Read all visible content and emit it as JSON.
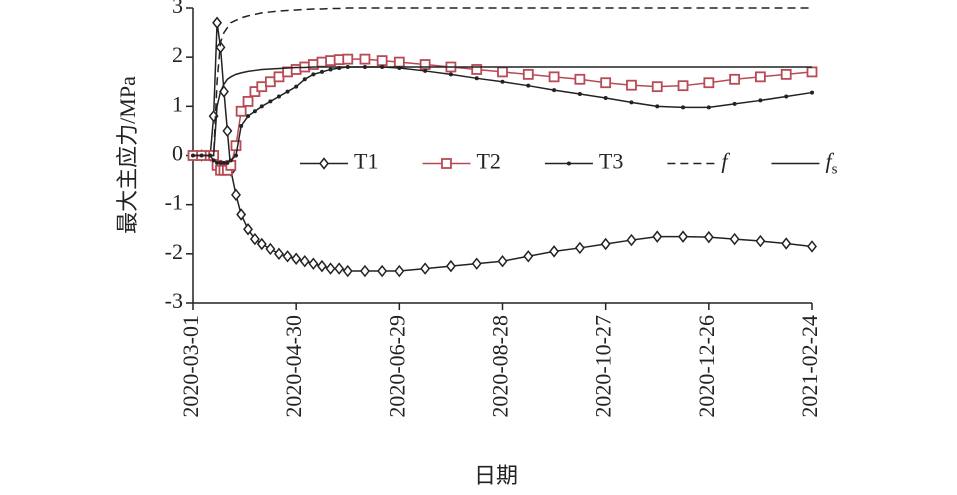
{
  "chart_data": {
    "type": "line",
    "x_label": "日期",
    "y_label": "最大主应力/MPa",
    "x": [
      "2020-03-01",
      "2020-03-06",
      "2020-03-11",
      "2020-03-13",
      "2020-03-15",
      "2020-03-17",
      "2020-03-19",
      "2020-03-21",
      "2020-03-23",
      "2020-03-26",
      "2020-03-29",
      "2020-04-02",
      "2020-04-06",
      "2020-04-10",
      "2020-04-15",
      "2020-04-20",
      "2020-04-25",
      "2020-04-30",
      "2020-05-05",
      "2020-05-10",
      "2020-05-15",
      "2020-05-20",
      "2020-05-25",
      "2020-05-30",
      "2020-06-09",
      "2020-06-19",
      "2020-06-29",
      "2020-07-14",
      "2020-07-29",
      "2020-08-13",
      "2020-08-28",
      "2020-09-12",
      "2020-09-27",
      "2020-10-12",
      "2020-10-27",
      "2020-11-11",
      "2020-11-26",
      "2020-12-11",
      "2020-12-26",
      "2021-01-10",
      "2021-01-25",
      "2021-02-09",
      "2021-02-24"
    ],
    "xlim": [
      "2020-03-01",
      "2021-02-24"
    ],
    "xticks": [
      "2020-03-01",
      "2020-04-30",
      "2020-06-29",
      "2020-08-28",
      "2020-10-27",
      "2020-12-26",
      "2021-02-24"
    ],
    "ylim": [
      -3,
      3
    ],
    "yticks": [
      3,
      2,
      1,
      0,
      -1,
      -2,
      -3
    ],
    "legend": "center",
    "series": [
      {
        "name": "T1",
        "color": "#222222",
        "marker": "diamond",
        "dash": false,
        "italic": false,
        "values": [
          0,
          0,
          0,
          0.8,
          2.7,
          2.2,
          1.3,
          0.5,
          -0.3,
          -0.8,
          -1.2,
          -1.5,
          -1.7,
          -1.8,
          -1.9,
          -2.0,
          -2.05,
          -2.1,
          -2.15,
          -2.2,
          -2.25,
          -2.3,
          -2.3,
          -2.35,
          -2.35,
          -2.35,
          -2.35,
          -2.3,
          -2.25,
          -2.2,
          -2.15,
          -2.05,
          -1.95,
          -1.88,
          -1.8,
          -1.72,
          -1.65,
          -1.65,
          -1.66,
          -1.7,
          -1.74,
          -1.79,
          -1.85
        ]
      },
      {
        "name": "T2",
        "color": "#b84a55",
        "marker": "square",
        "dash": false,
        "italic": false,
        "values": [
          0,
          0,
          0,
          0,
          -0.2,
          -0.3,
          -0.3,
          -0.3,
          -0.2,
          0.2,
          0.9,
          1.1,
          1.3,
          1.4,
          1.5,
          1.6,
          1.7,
          1.75,
          1.8,
          1.85,
          1.9,
          1.93,
          1.95,
          1.96,
          1.96,
          1.93,
          1.9,
          1.85,
          1.8,
          1.75,
          1.7,
          1.65,
          1.6,
          1.55,
          1.48,
          1.43,
          1.4,
          1.42,
          1.48,
          1.55,
          1.6,
          1.65,
          1.7
        ]
      },
      {
        "name": "T3",
        "color": "#222222",
        "marker": "dot",
        "dash": false,
        "italic": false,
        "values": [
          0,
          0,
          0,
          -0.1,
          -0.15,
          -0.15,
          -0.15,
          -0.15,
          -0.1,
          0.0,
          0.6,
          0.8,
          0.9,
          1.0,
          1.1,
          1.2,
          1.3,
          1.4,
          1.55,
          1.65,
          1.7,
          1.75,
          1.78,
          1.8,
          1.8,
          1.8,
          1.78,
          1.72,
          1.65,
          1.57,
          1.5,
          1.42,
          1.33,
          1.25,
          1.17,
          1.08,
          1.0,
          0.98,
          0.98,
          1.05,
          1.12,
          1.2,
          1.28
        ]
      },
      {
        "name": "f",
        "color": "#222222",
        "marker": "none",
        "dash": true,
        "italic": true,
        "values": [
          0,
          0,
          0,
          0,
          1.5,
          2.3,
          2.5,
          2.6,
          2.7,
          2.75,
          2.8,
          2.84,
          2.87,
          2.9,
          2.92,
          2.94,
          2.95,
          2.96,
          2.97,
          2.98,
          2.98,
          2.99,
          2.99,
          3,
          3,
          3,
          3,
          3,
          3,
          3,
          3,
          3,
          3,
          3,
          3,
          3,
          3,
          3,
          3,
          3,
          3,
          3,
          3
        ]
      },
      {
        "name": "fs",
        "color": "#222222",
        "marker": "none",
        "dash": false,
        "italic": true,
        "values": [
          0,
          0,
          0,
          0,
          1.0,
          1.3,
          1.45,
          1.55,
          1.6,
          1.65,
          1.68,
          1.71,
          1.73,
          1.75,
          1.76,
          1.77,
          1.78,
          1.79,
          1.79,
          1.8,
          1.8,
          1.8,
          1.8,
          1.8,
          1.8,
          1.8,
          1.8,
          1.8,
          1.8,
          1.8,
          1.8,
          1.8,
          1.8,
          1.8,
          1.8,
          1.8,
          1.8,
          1.8,
          1.8,
          1.8,
          1.8,
          1.8,
          1.8
        ]
      }
    ]
  }
}
